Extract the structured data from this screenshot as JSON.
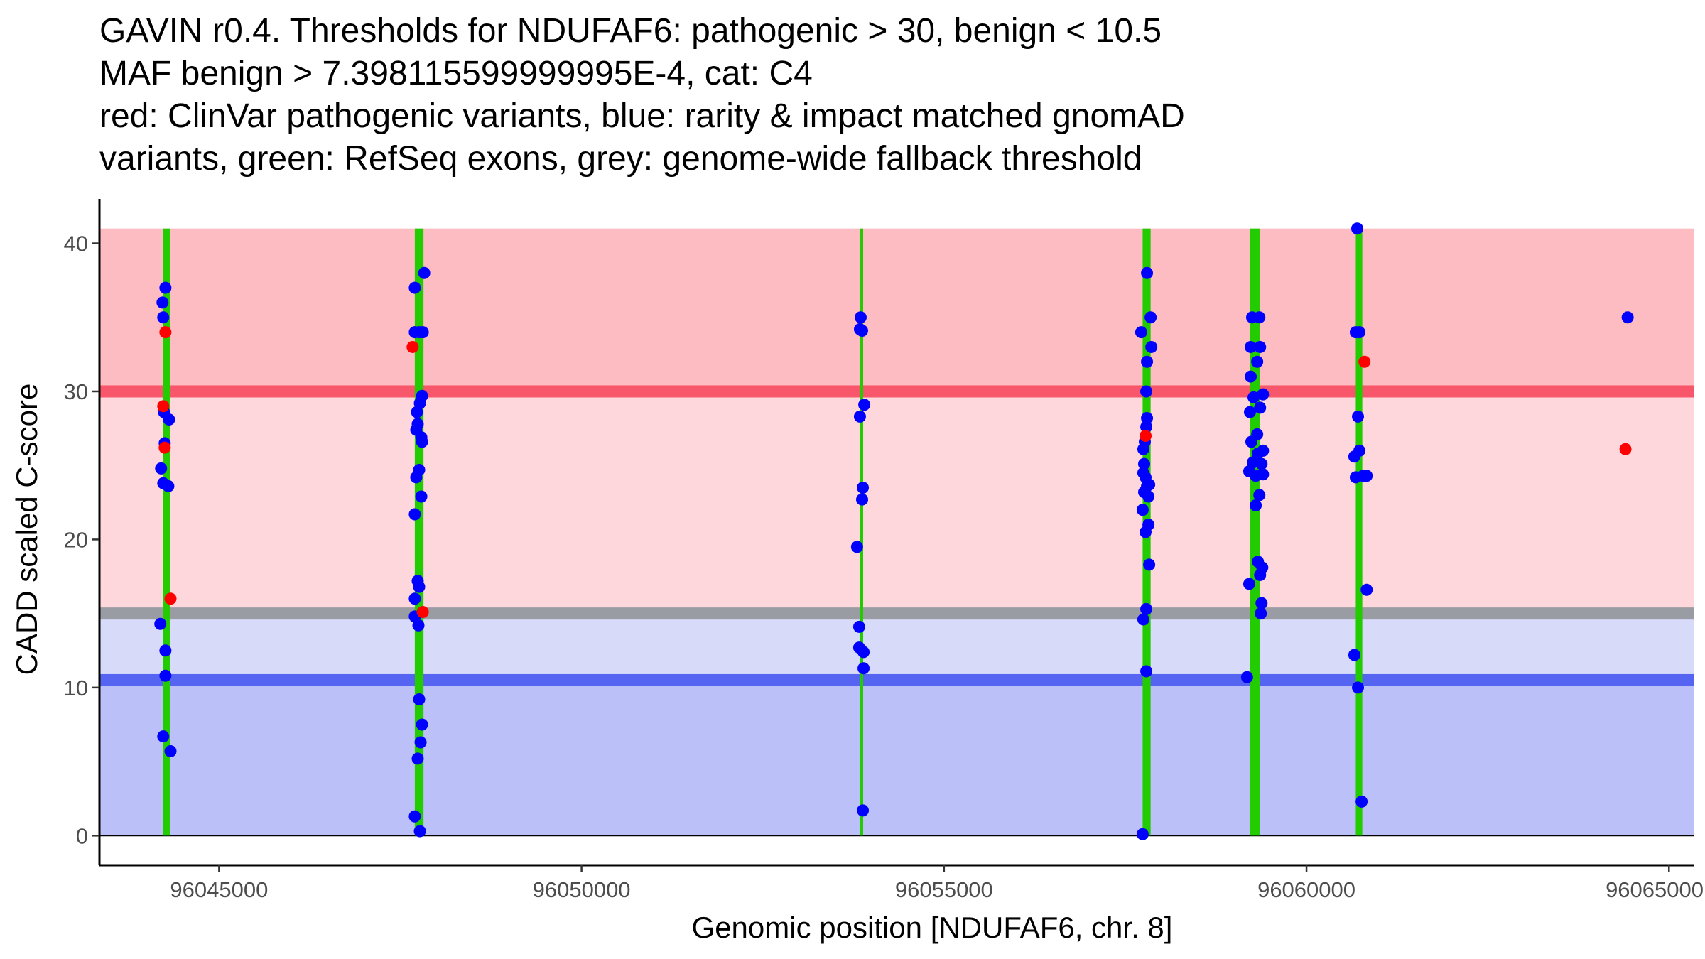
{
  "chart_data": {
    "type": "scatter",
    "title_lines": [
      "GAVIN r0.4. Thresholds for NDUFAF6: pathogenic > 30, benign < 10.5",
      "MAF benign > 7.398115599999995E-4, cat: C4",
      "red: ClinVar pathogenic variants, blue: rarity & impact matched gnomAD",
      "variants, green: RefSeq exons, grey: genome-wide fallback threshold"
    ],
    "xlabel": "Genomic position [NDUFAF6, chr. 8]",
    "ylabel": "CADD scaled C-score",
    "xlim": [
      96043350,
      96065350
    ],
    "ylim": [
      -2,
      43
    ],
    "xticks": [
      96045000,
      96050000,
      96055000,
      96060000,
      96065000
    ],
    "xtick_labels": [
      "96045000",
      "96050000",
      "96055000",
      "96060000",
      "96065000"
    ],
    "yticks": [
      0,
      10,
      20,
      30,
      40
    ],
    "ytick_labels": [
      "0",
      "10",
      "20",
      "30",
      "40"
    ],
    "grid": false,
    "thresholds": {
      "pathogenic": 30,
      "benign": 10.5,
      "fallback": 15,
      "max_score": 41
    },
    "colors": {
      "pathogenic_band": "#fdd7dc",
      "pathogenic_max_band": "#fdbcc2",
      "benign_band": "#d7daf9",
      "benign_min_band": "#bbc0f8",
      "pathogenic_line": "#f7566b",
      "benign_line": "#5565f1",
      "fallback_line": "#999ca2",
      "exon": "#22cc00",
      "clinvar": "#ff0000",
      "gnomad": "#0000ff"
    },
    "exons": [
      {
        "start": 96044230,
        "end": 96044320
      },
      {
        "start": 96047700,
        "end": 96047820
      },
      {
        "start": 96053850,
        "end": 96053880
      },
      {
        "start": 96057740,
        "end": 96057850
      },
      {
        "start": 96059220,
        "end": 96059360
      },
      {
        "start": 96060680,
        "end": 96060770
      }
    ],
    "series": [
      {
        "name": "ClinVar pathogenic",
        "color": "#ff0000",
        "points": [
          [
            96044260,
            34
          ],
          [
            96044230,
            29
          ],
          [
            96044250,
            26.2
          ],
          [
            96044330,
            16
          ],
          [
            96047670,
            33
          ],
          [
            96047810,
            15.1
          ],
          [
            96057780,
            27
          ],
          [
            96060800,
            32
          ],
          [
            96064400,
            26.1
          ]
        ]
      },
      {
        "name": "gnomAD matched",
        "color": "#0000ff",
        "points": [
          [
            96044260,
            37
          ],
          [
            96044220,
            36
          ],
          [
            96044230,
            35
          ],
          [
            96044240,
            28.6
          ],
          [
            96044310,
            28.1
          ],
          [
            96044250,
            26.5
          ],
          [
            96044200,
            24.8
          ],
          [
            96044230,
            23.8
          ],
          [
            96044300,
            23.6
          ],
          [
            96044190,
            14.3
          ],
          [
            96044260,
            12.5
          ],
          [
            96044260,
            10.8
          ],
          [
            96044230,
            6.7
          ],
          [
            96044330,
            5.7
          ],
          [
            96047700,
            37
          ],
          [
            96047700,
            34
          ],
          [
            96047760,
            34
          ],
          [
            96047810,
            34
          ],
          [
            96047830,
            38
          ],
          [
            96047800,
            29.7
          ],
          [
            96047770,
            29.2
          ],
          [
            96047730,
            28.6
          ],
          [
            96047740,
            27.8
          ],
          [
            96047720,
            27.4
          ],
          [
            96047790,
            26.9
          ],
          [
            96047800,
            26.6
          ],
          [
            96047760,
            24.7
          ],
          [
            96047720,
            24.2
          ],
          [
            96047790,
            22.9
          ],
          [
            96047700,
            21.7
          ],
          [
            96047740,
            17.2
          ],
          [
            96047760,
            16.8
          ],
          [
            96047700,
            16
          ],
          [
            96047700,
            14.8
          ],
          [
            96047750,
            14.2
          ],
          [
            96047760,
            9.2
          ],
          [
            96047800,
            7.5
          ],
          [
            96047780,
            6.3
          ],
          [
            96047740,
            5.2
          ],
          [
            96047700,
            1.3
          ],
          [
            96047770,
            0.3
          ],
          [
            96053850,
            35
          ],
          [
            96053840,
            34.2
          ],
          [
            96053870,
            34.1
          ],
          [
            96053900,
            29.1
          ],
          [
            96053840,
            28.3
          ],
          [
            96053880,
            23.5
          ],
          [
            96053870,
            22.7
          ],
          [
            96053800,
            19.5
          ],
          [
            96053830,
            14.1
          ],
          [
            96053830,
            12.7
          ],
          [
            96053890,
            12.4
          ],
          [
            96053890,
            11.3
          ],
          [
            96053880,
            1.7
          ],
          [
            96057800,
            38
          ],
          [
            96057720,
            34
          ],
          [
            96057850,
            35
          ],
          [
            96057860,
            33
          ],
          [
            96057800,
            32
          ],
          [
            96057790,
            30
          ],
          [
            96057800,
            28.2
          ],
          [
            96057790,
            27.6
          ],
          [
            96057750,
            26.1
          ],
          [
            96057770,
            26.6
          ],
          [
            96057760,
            25.1
          ],
          [
            96057750,
            24.5
          ],
          [
            96057780,
            24.2
          ],
          [
            96057830,
            23.7
          ],
          [
            96057760,
            23.2
          ],
          [
            96057800,
            23.6
          ],
          [
            96057820,
            22.9
          ],
          [
            96057740,
            22
          ],
          [
            96057820,
            21
          ],
          [
            96057780,
            20.5
          ],
          [
            96057830,
            18.3
          ],
          [
            96057790,
            15.3
          ],
          [
            96057750,
            14.6
          ],
          [
            96057790,
            11.1
          ],
          [
            96057740,
            0.1
          ],
          [
            96059250,
            35
          ],
          [
            96059350,
            35
          ],
          [
            96059230,
            33
          ],
          [
            96059360,
            33
          ],
          [
            96059320,
            32
          ],
          [
            96059230,
            31
          ],
          [
            96059270,
            29.6
          ],
          [
            96059400,
            29.8
          ],
          [
            96059220,
            28.6
          ],
          [
            96059360,
            28.9
          ],
          [
            96059320,
            27.1
          ],
          [
            96059240,
            26.6
          ],
          [
            96059400,
            26
          ],
          [
            96059330,
            25.8
          ],
          [
            96059260,
            25.2
          ],
          [
            96059380,
            25.1
          ],
          [
            96059210,
            24.6
          ],
          [
            96059300,
            24.3
          ],
          [
            96059400,
            24.4
          ],
          [
            96059350,
            23
          ],
          [
            96059300,
            22.3
          ],
          [
            96059330,
            18.5
          ],
          [
            96059390,
            18.1
          ],
          [
            96059360,
            17.6
          ],
          [
            96059210,
            17
          ],
          [
            96059380,
            15.7
          ],
          [
            96059370,
            15
          ],
          [
            96059180,
            10.7
          ],
          [
            96060700,
            41
          ],
          [
            96060680,
            34
          ],
          [
            96060730,
            34
          ],
          [
            96060710,
            28.3
          ],
          [
            96060730,
            26
          ],
          [
            96060660,
            25.6
          ],
          [
            96060680,
            24.2
          ],
          [
            96060780,
            24.3
          ],
          [
            96060830,
            24.3
          ],
          [
            96060830,
            16.6
          ],
          [
            96060660,
            12.2
          ],
          [
            96060710,
            10
          ],
          [
            96060760,
            2.3
          ],
          [
            96064430,
            35
          ]
        ]
      }
    ]
  }
}
